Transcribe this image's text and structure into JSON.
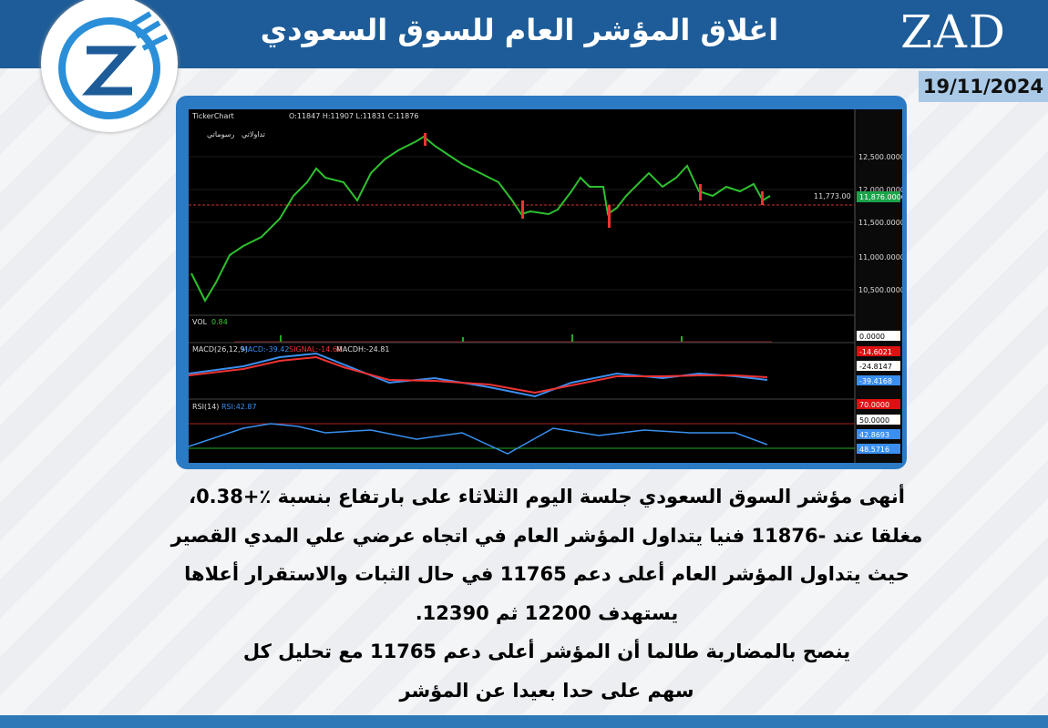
{
  "header": {
    "title": "اغلاق المؤشر العام للسوق السعودي",
    "brand": "ZAD",
    "date": "19/11/2024"
  },
  "chart_panel": {
    "source": "TickerChart",
    "ohlc": "O:11847  H:11907  L:11831  C:11876",
    "toolbar": [
      "تداولاتي",
      "رسوماتي"
    ],
    "price_axis": [
      "12,500.0000",
      "12,000.0000",
      "11,500.0000",
      "11,000.0000",
      "10,500.0000"
    ],
    "support_line": "11,773.00",
    "last_price": "11,876.0000",
    "vol": {
      "label": "VOL",
      "value": "0.84",
      "axis": "0.0000"
    },
    "macd": {
      "label": "MACD(26,12,9)",
      "macd": "MACD:-39.42",
      "signal": "SIGNAL:-14.60",
      "hist": "MACDH:-24.81",
      "axis": [
        "-14.6021",
        "-24.8147",
        "-39.4168"
      ]
    },
    "rsi": {
      "label": "RSI(14)",
      "value": "RSI:42.87",
      "axis": [
        "70.0000",
        "50.0000",
        "42.8693",
        "48.5716"
      ]
    }
  },
  "body": {
    "lines": [
      "أنهى مؤشر السوق السعودي جلسة اليوم  الثلاثاء  على بارتفاع  بنسبة ٪+0.38،",
      "مغلقا عند -11876 فنيا  يتداول المؤشر العام في اتجاه عرضي   علي المدي القصير",
      "حيث يتداول المؤشر العام أعلى دعم 11765 في حال  الثبات والاستقرار أعلاها",
      "يستهدف 12200 ثم 12390.",
      "ينصح  بالمضاربة طالما أن المؤشر أعلى دعم 11765 مع  تحليل كل",
      "سهم على حدا بعيدا عن المؤشر"
    ]
  }
}
